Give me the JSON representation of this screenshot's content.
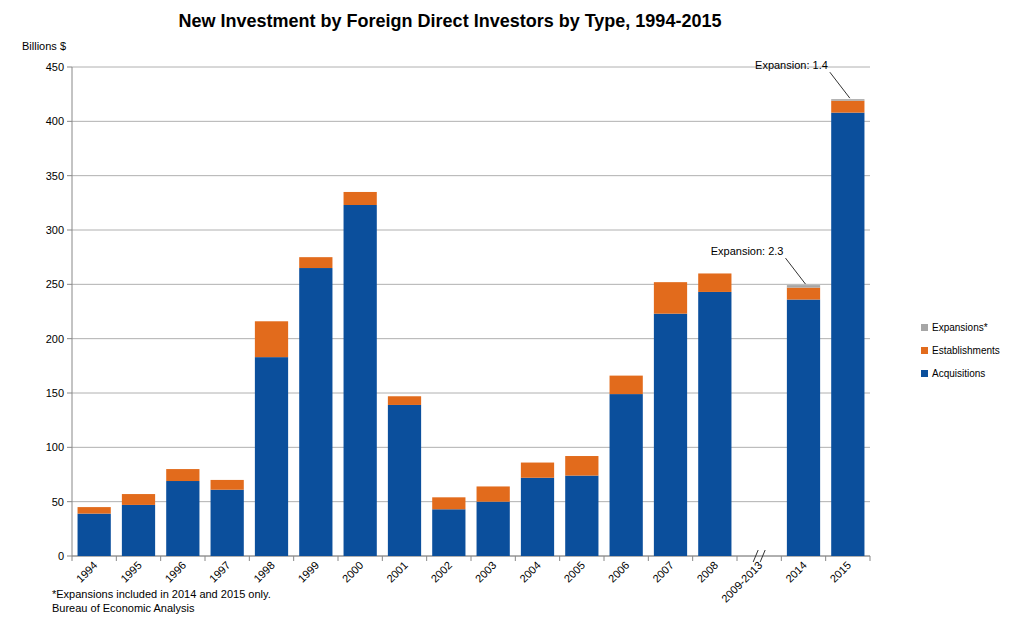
{
  "chart_data": {
    "type": "bar",
    "title": "New Investment by Foreign Direct Investors by Type, 1994-2015",
    "y_label": "Billions $",
    "footnote": "*Expansions included in 2014 and 2015 only.",
    "source": "Bureau of Economic Analysis",
    "stacked": true,
    "grid": true,
    "legend": "right",
    "categories": [
      "1994",
      "1995",
      "1996",
      "1997",
      "1998",
      "1999",
      "2000",
      "2001",
      "2002",
      "2003",
      "2004",
      "2005",
      "2006",
      "2007",
      "2008",
      "2009-2013",
      "2014",
      "2015"
    ],
    "series": [
      {
        "name": "Acquisitions",
        "color": "#0b4f9c",
        "values": [
          39,
          47,
          69,
          61,
          183,
          265,
          323,
          139,
          43,
          50,
          72,
          74,
          149,
          223,
          243,
          null,
          236,
          408
        ]
      },
      {
        "name": "Establishments",
        "color": "#e26b1c",
        "values": [
          6,
          10,
          11,
          9,
          33,
          10,
          12,
          8,
          11,
          14,
          14,
          18,
          17,
          29,
          17,
          null,
          11,
          11
        ]
      },
      {
        "name": "Expansions*",
        "color": "#a6a6a6",
        "values": [
          null,
          null,
          null,
          null,
          null,
          null,
          null,
          null,
          null,
          null,
          null,
          null,
          null,
          null,
          null,
          null,
          2.3,
          1.4
        ],
        "value_labels": [
          null,
          null,
          null,
          null,
          null,
          null,
          null,
          null,
          null,
          null,
          null,
          null,
          null,
          null,
          null,
          null,
          "Expansion: 2.3",
          "Expansion: 1.4"
        ]
      }
    ],
    "ylim": [
      0,
      450
    ],
    "yticks": [
      0,
      50,
      100,
      150,
      200,
      250,
      300,
      350,
      400,
      450
    ]
  }
}
